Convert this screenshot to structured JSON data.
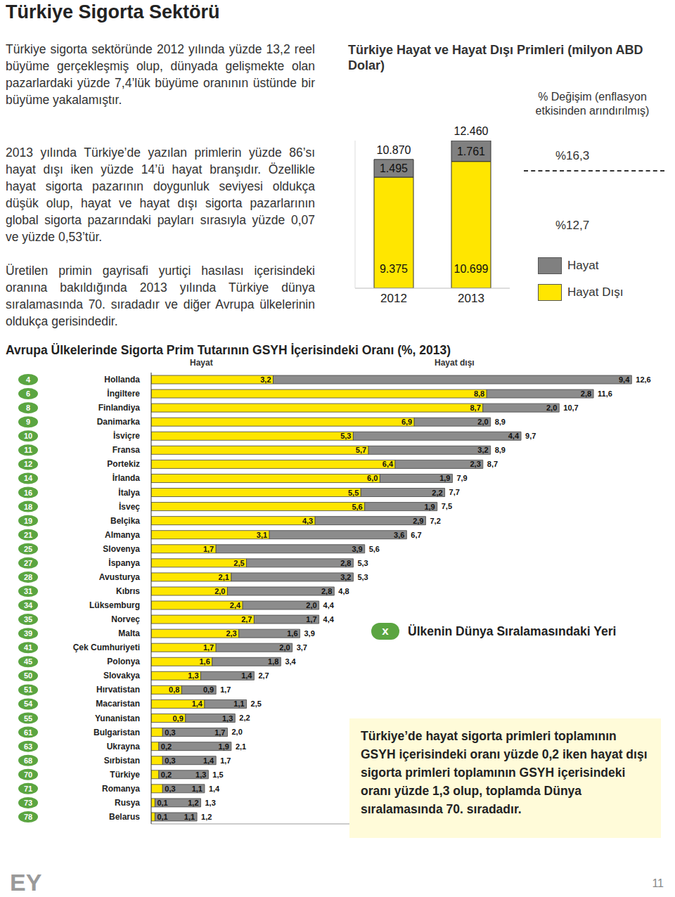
{
  "title": "Türkiye Sigorta Sektörü",
  "paragraphs": [
    "Türkiye sigorta sektöründe 2012 yılında yüzde 13,2 reel büyüme gerçekleşmiş olup, dünyada gelişmekte olan pazarlardaki yüzde 7,4’lük büyüme oranının üstünde bir büyüme yakalamıştır.",
    "2013 yılında Türkiye’de yazılan primlerin yüzde 86’sı hayat dışı iken yüzde 14’ü hayat branşıdır. Özellikle hayat sigorta pazarının doygunluk seviyesi oldukça düşük olup, hayat ve hayat dışı sigorta pazarlarının global sigorta pazarındaki payları sırasıyla yüzde 0,07 ve yüzde 0,53’tür.",
    "Üretilen primin gayrisafi yurtiçi hasılası içerisindeki oranına bakıldığında 2013 yılında Türkiye dünya sıralamasında 70. sıradadır ve diğer Avrupa ülkelerinin oldukça gerisindedir."
  ],
  "chart_data": [
    {
      "type": "bar",
      "stacked": true,
      "title": "Türkiye Hayat ve Hayat Dışı Primleri (milyon ABD Dolar)",
      "categories": [
        "2012",
        "2013"
      ],
      "series": [
        {
          "name": "Hayat",
          "color": "#808080",
          "values": [
            1495,
            1761
          ],
          "value_labels": [
            "1.495",
            "1.761"
          ]
        },
        {
          "name": "Hayat Dışı",
          "color": "#FFE600",
          "values": [
            9375,
            10699
          ],
          "value_labels": [
            "9.375",
            "10.699"
          ]
        }
      ],
      "totals": [
        10870,
        12460
      ],
      "total_labels": [
        "10.870",
        "12.460"
      ],
      "ylim": [
        0,
        12460
      ],
      "tick_labels": "x",
      "data_labels": true,
      "legend": "right",
      "annotation": {
        "title": "% Değişim (enflasyon etkisinden arındırılmış)",
        "changes": [
          {
            "series": "Hayat",
            "label": "%16,3"
          },
          {
            "series": "Hayat Dışı",
            "label": "%12,7"
          }
        ]
      }
    },
    {
      "type": "bar",
      "orientation": "horizontal",
      "stacked": true,
      "title": "Avrupa Ülkelerinde Sigorta Prim Tutarının GSYH İçerisindeki Oranı (%, 2013)",
      "categories": [
        "Hollanda",
        "İngiltere",
        "Finlandiya",
        "Danimarka",
        "İsviçre",
        "Fransa",
        "Portekiz",
        "İrlanda",
        "İtalya",
        "İsveç",
        "Belçika",
        "Almanya",
        "Slovenya",
        "İspanya",
        "Avusturya",
        "Kıbrıs",
        "Lüksemburg",
        "Norveç",
        "Malta",
        "Çek Cumhuriyeti",
        "Polonya",
        "Slovakya",
        "Hırvatistan",
        "Macaristan",
        "Yunanistan",
        "Bulgaristan",
        "Ukrayna",
        "Sırbistan",
        "Türkiye",
        "Romanya",
        "Rusya",
        "Belarus"
      ],
      "ranks": [
        4,
        6,
        8,
        9,
        10,
        11,
        12,
        14,
        16,
        18,
        19,
        21,
        25,
        27,
        28,
        31,
        34,
        35,
        39,
        41,
        45,
        50,
        51,
        54,
        55,
        61,
        63,
        68,
        70,
        71,
        73,
        78
      ],
      "series": [
        {
          "name": "Hayat",
          "color": "#FFE600",
          "values": [
            3.2,
            8.8,
            8.7,
            6.9,
            5.3,
            5.7,
            6.4,
            6.0,
            5.5,
            5.6,
            4.3,
            3.1,
            1.7,
            2.5,
            2.1,
            2.0,
            2.4,
            2.7,
            2.3,
            1.7,
            1.6,
            1.3,
            0.8,
            1.4,
            0.9,
            0.3,
            0.2,
            0.3,
            0.2,
            0.3,
            0.1,
            0.1
          ],
          "value_labels": [
            "3,2",
            "8,8",
            "8,7",
            "6,9",
            "5,3",
            "5,7",
            "6,4",
            "6,0",
            "5,5",
            "5,6",
            "4,3",
            "3,1",
            "1,7",
            "2,5",
            "2,1",
            "2,0",
            "2,4",
            "2,7",
            "2,3",
            "1,7",
            "1,6",
            "1,3",
            "0,8",
            "1,4",
            "0,9",
            "0,3",
            "0,2",
            "0,3",
            "0,2",
            "0,3",
            "0,1",
            "0,1"
          ]
        },
        {
          "name": "Hayat dışı",
          "color": "#8C8C8C",
          "values": [
            9.4,
            2.8,
            2.0,
            2.0,
            4.4,
            3.2,
            2.3,
            1.9,
            2.2,
            1.9,
            2.9,
            3.6,
            3.9,
            2.8,
            3.2,
            2.8,
            2.0,
            1.7,
            1.6,
            2.0,
            1.8,
            1.4,
            0.9,
            1.1,
            1.3,
            1.7,
            1.9,
            1.4,
            1.3,
            1.1,
            1.2,
            1.1
          ],
          "value_labels": [
            "9,4",
            "2,8",
            "2,0",
            "2,0",
            "4,4",
            "3,2",
            "2,3",
            "1,9",
            "2,2",
            "1,9",
            "2,9",
            "3,6",
            "3,9",
            "2,8",
            "3,2",
            "2,8",
            "2,0",
            "1,7",
            "1,6",
            "2,0",
            "1,8",
            "1,4",
            "0,9",
            "1,1",
            "1,3",
            "1,7",
            "1,9",
            "1,4",
            "1,3",
            "1,1",
            "1,2",
            "1,1"
          ]
        }
      ],
      "totals": [
        12.6,
        11.6,
        10.7,
        8.9,
        9.7,
        8.9,
        8.7,
        7.9,
        7.7,
        7.5,
        7.2,
        6.7,
        5.6,
        5.3,
        5.3,
        4.8,
        4.4,
        4.4,
        3.9,
        3.7,
        3.4,
        2.7,
        1.7,
        2.5,
        2.2,
        2.0,
        2.1,
        1.7,
        1.5,
        1.4,
        1.3,
        1.2
      ],
      "total_labels": [
        "12,6",
        "11,6",
        "10,7",
        "8,9",
        "9,7",
        "8,9",
        "8,7",
        "7,9",
        "7,7",
        "7,5",
        "7,2",
        "6,7",
        "5,6",
        "5,3",
        "5,3",
        "4,8",
        "4,4",
        "4,4",
        "3,9",
        "3,7",
        "3,4",
        "2,7",
        "1,7",
        "2,5",
        "2,2",
        "2,0",
        "2,1",
        "1,7",
        "1,5",
        "1,4",
        "1,3",
        "1,2"
      ],
      "xlim": [
        0,
        13
      ],
      "tick_labels": "y",
      "data_labels": true
    }
  ],
  "rank_legend": {
    "symbol": "x",
    "label": "Ülkenin Dünya Sıralamasındaki Yeri"
  },
  "callout": "Türkiye’de hayat sigorta primleri toplamının GSYH içerisindeki oranı yüzde 0,2 iken hayat dışı sigorta primleri toplamının GSYH içerisindeki oranı yüzde 1,3 olup, toplamda Dünya sıralamasında 70. sıradadır.",
  "footer": {
    "logo": "EY",
    "page": 11
  }
}
